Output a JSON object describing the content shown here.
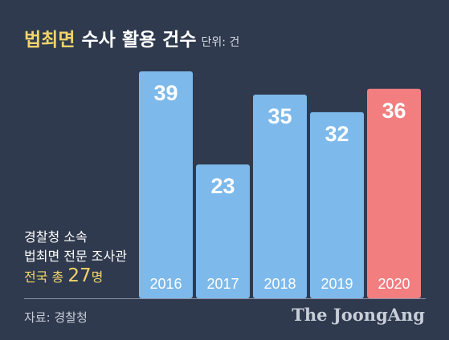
{
  "title": {
    "highlight": "법최면",
    "main": "수사 활용 건수",
    "unit": "단위: 건"
  },
  "note": {
    "line1": "경찰청 소속",
    "line2": "법최면 전문 조사관",
    "total_prefix": "전국 총",
    "total_number": "27",
    "total_suffix": "명"
  },
  "source": "자료: 경찰청",
  "brand": "The JoongAng",
  "colors": {
    "background": "#2f3a4e",
    "bar": "#7db9eb",
    "bar_highlight": "#f27e80",
    "highlight_text": "#f3d36b"
  },
  "chart_data": {
    "type": "bar",
    "categories": [
      "2016",
      "2017",
      "2018",
      "2019",
      "2020"
    ],
    "values": [
      39,
      23,
      35,
      32,
      36
    ],
    "title": "법최면 수사 활용 건수",
    "unit": "단위: 건",
    "highlight_category": "2020",
    "ylim": [
      0,
      43
    ],
    "grid": false,
    "legend": "none"
  }
}
